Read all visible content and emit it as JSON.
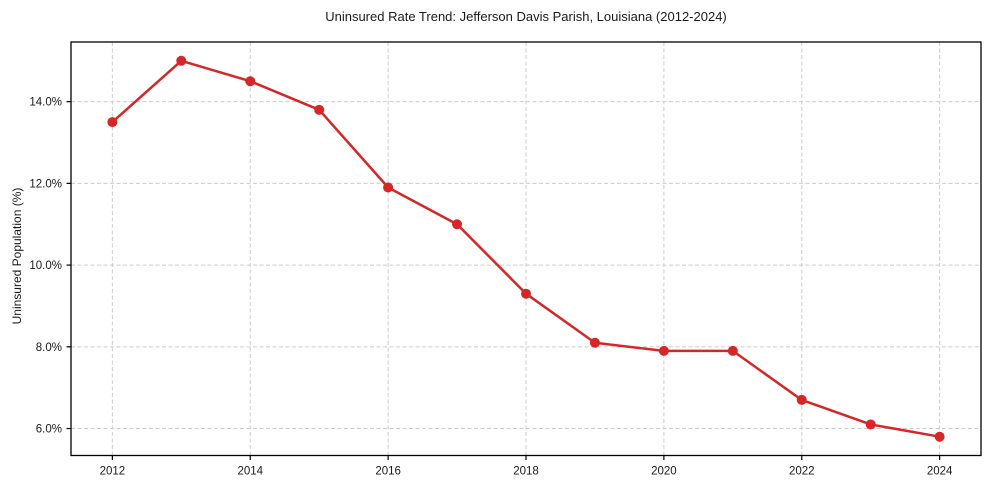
{
  "chart_data": {
    "type": "line",
    "title": "Uninsured Rate Trend: Jefferson Davis Parish, Louisiana (2012-2024)",
    "xlabel": "",
    "ylabel": "Uninsured Population (%)",
    "x": [
      2012,
      2013,
      2014,
      2015,
      2016,
      2017,
      2018,
      2019,
      2020,
      2021,
      2022,
      2023,
      2024
    ],
    "series": [
      {
        "name": "Uninsured Population (%)",
        "values": [
          13.5,
          15.0,
          14.5,
          13.8,
          11.9,
          11.0,
          9.3,
          8.1,
          7.9,
          7.9,
          6.7,
          6.1,
          5.8
        ],
        "color": "#d62728"
      }
    ],
    "xlim": [
      2011.4,
      2024.6
    ],
    "ylim": [
      5.34,
      15.46
    ],
    "xticks": {
      "values": [
        2012,
        2014,
        2016,
        2018,
        2020,
        2022,
        2024
      ],
      "labels": [
        "2012",
        "2014",
        "2016",
        "2018",
        "2020",
        "2022",
        "2024"
      ]
    },
    "yticks": {
      "values": [
        6,
        8,
        10,
        12,
        14
      ],
      "labels": [
        "6.0%",
        "8.0%",
        "10.0%",
        "12.0%",
        "14.0%"
      ]
    },
    "grid": true,
    "grid_style": "dashed",
    "grid_color": "#cccccc",
    "legend_position": "none",
    "marker": "circle",
    "marker_radius": 5,
    "line_width": 2.5,
    "spine_color": "#000000",
    "tick_label_color": "#1a1a1a",
    "background": "#ffffff"
  }
}
